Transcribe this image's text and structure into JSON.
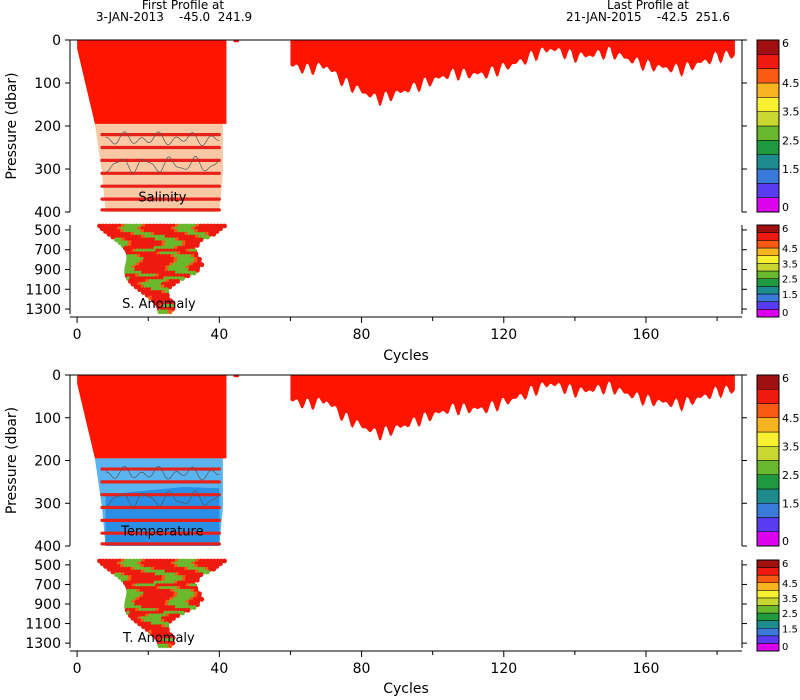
{
  "header": {
    "first_title": "First Profile at",
    "first_info": "3-JAN-2013    -45.0  241.9",
    "last_title": "Last Profile at",
    "last_info": "21-JAN-2015    -42.5  251.6"
  },
  "chart_data": [
    {
      "type": "heatmap",
      "panel": "salinity",
      "label": "Salinity",
      "anomaly_label": "S. Anomaly",
      "xlabel": "Cycles",
      "ylabel": "Pressure (dbar)",
      "xlim": [
        -2,
        187
      ],
      "x_ticks": [
        0,
        40,
        80,
        120,
        160
      ],
      "upper_ylim": [
        0,
        400
      ],
      "upper_y_ticks": [
        0,
        100,
        200,
        300,
        400
      ],
      "lower_ylim": [
        450,
        1350
      ],
      "lower_y_ticks": [
        500,
        700,
        900,
        1100,
        1300
      ],
      "colorbar_ticks": [
        "0",
        "1.5",
        "2.5",
        "3.5",
        "4.5",
        "6"
      ],
      "colorbar_colors": [
        "#dd00ee",
        "#5a3cf0",
        "#3a7ad8",
        "#1e8c8c",
        "#1f9a3e",
        "#6ab82d",
        "#c8d830",
        "#f8f030",
        "#f8b420",
        "#f85a14",
        "#ee1a10",
        "#a01010"
      ],
      "surface_fill_color": "#ff1400",
      "deep_fill_color": "#f9c9a5",
      "level_line_color": "#e8201a",
      "profile_depth_dbar": [
        {
          "x": 0,
          "depth": 20
        },
        {
          "x": 5,
          "depth": 195
        },
        {
          "x": 42,
          "depth": 195
        },
        {
          "x": 44,
          "depth": 5
        },
        {
          "x": 59,
          "depth": 8
        },
        {
          "x": 60,
          "depth": 60
        },
        {
          "x": 65,
          "depth": 70
        },
        {
          "x": 70,
          "depth": 60
        },
        {
          "x": 75,
          "depth": 100
        },
        {
          "x": 85,
          "depth": 140
        },
        {
          "x": 95,
          "depth": 110
        },
        {
          "x": 105,
          "depth": 80
        },
        {
          "x": 115,
          "depth": 80
        },
        {
          "x": 125,
          "depth": 50
        },
        {
          "x": 133,
          "depth": 20
        },
        {
          "x": 140,
          "depth": 40
        },
        {
          "x": 150,
          "depth": 30
        },
        {
          "x": 160,
          "depth": 60
        },
        {
          "x": 170,
          "depth": 70
        },
        {
          "x": 180,
          "depth": 40
        },
        {
          "x": 185,
          "depth": 35
        }
      ]
    },
    {
      "type": "heatmap",
      "panel": "temperature",
      "label": "Temperature",
      "anomaly_label": "T. Anomaly",
      "xlabel": "Cycles",
      "ylabel": "Pressure (dbar)",
      "xlim": [
        -2,
        187
      ],
      "x_ticks": [
        0,
        40,
        80,
        120,
        160
      ],
      "upper_ylim": [
        0,
        400
      ],
      "upper_y_ticks": [
        0,
        100,
        200,
        300,
        400
      ],
      "lower_ylim": [
        450,
        1350
      ],
      "lower_y_ticks": [
        500,
        700,
        900,
        1100,
        1300
      ],
      "colorbar_ticks": [
        "0",
        "1.5",
        "2.5",
        "3.5",
        "4.5",
        "6"
      ],
      "colorbar_colors": [
        "#dd00ee",
        "#5a3cf0",
        "#3a7ad8",
        "#1e8c8c",
        "#1f9a3e",
        "#6ab82d",
        "#c8d830",
        "#f8f030",
        "#f8b420",
        "#f85a14",
        "#ee1a10",
        "#a01010"
      ],
      "surface_fill_color": "#ff1400",
      "deep_fill_color": "#5ab4f0",
      "deep_fill_color_dark": "#2a8ee6",
      "level_line_color": "#e8201a",
      "profile_depth_dbar": [
        {
          "x": 0,
          "depth": 20
        },
        {
          "x": 5,
          "depth": 195
        },
        {
          "x": 42,
          "depth": 195
        },
        {
          "x": 44,
          "depth": 5
        },
        {
          "x": 59,
          "depth": 8
        },
        {
          "x": 60,
          "depth": 60
        },
        {
          "x": 65,
          "depth": 70
        },
        {
          "x": 70,
          "depth": 60
        },
        {
          "x": 75,
          "depth": 100
        },
        {
          "x": 85,
          "depth": 140
        },
        {
          "x": 95,
          "depth": 110
        },
        {
          "x": 105,
          "depth": 80
        },
        {
          "x": 115,
          "depth": 80
        },
        {
          "x": 125,
          "depth": 50
        },
        {
          "x": 133,
          "depth": 20
        },
        {
          "x": 140,
          "depth": 40
        },
        {
          "x": 150,
          "depth": 30
        },
        {
          "x": 160,
          "depth": 60
        },
        {
          "x": 170,
          "depth": 70
        },
        {
          "x": 180,
          "depth": 40
        },
        {
          "x": 185,
          "depth": 35
        }
      ]
    }
  ]
}
